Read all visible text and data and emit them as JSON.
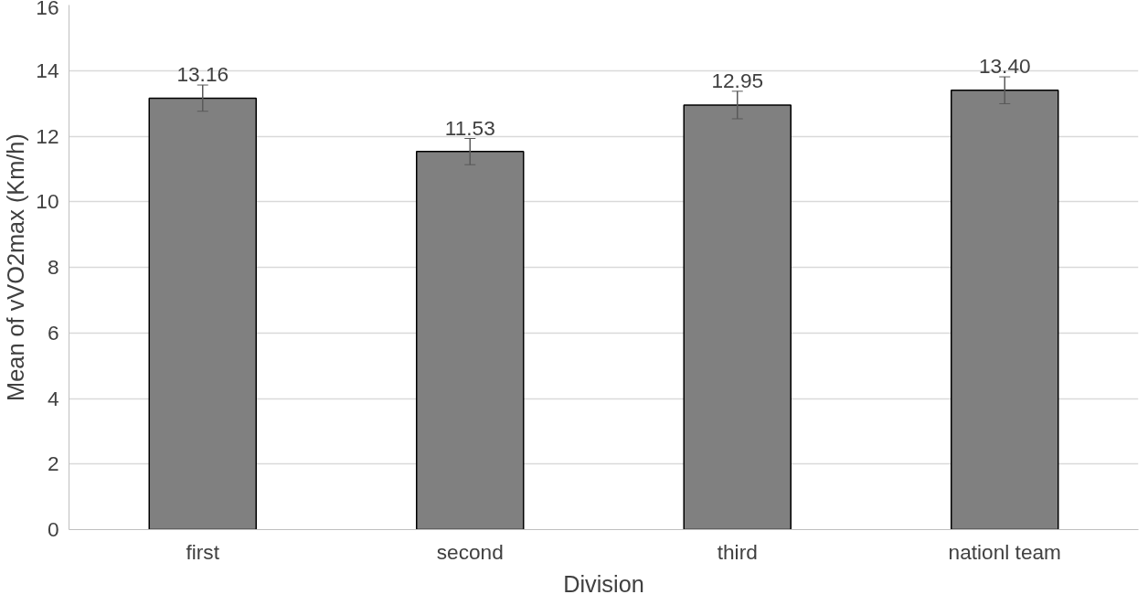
{
  "chart_data": {
    "type": "bar",
    "xlabel": "Division",
    "ylabel": "Mean of vVO2max (Km/h)",
    "categories": [
      "first",
      "second",
      "third",
      "nationl team"
    ],
    "values": [
      13.16,
      11.53,
      12.95,
      13.4
    ],
    "errors": [
      0.4,
      0.4,
      0.42,
      0.41
    ],
    "value_labels": [
      "13.16",
      "11.53",
      "12.95",
      "13.40"
    ],
    "color": "#808080",
    "ylim": [
      0,
      16
    ],
    "yticks": [
      0,
      2,
      4,
      6,
      8,
      10,
      12,
      14,
      16
    ],
    "grid": "y"
  }
}
